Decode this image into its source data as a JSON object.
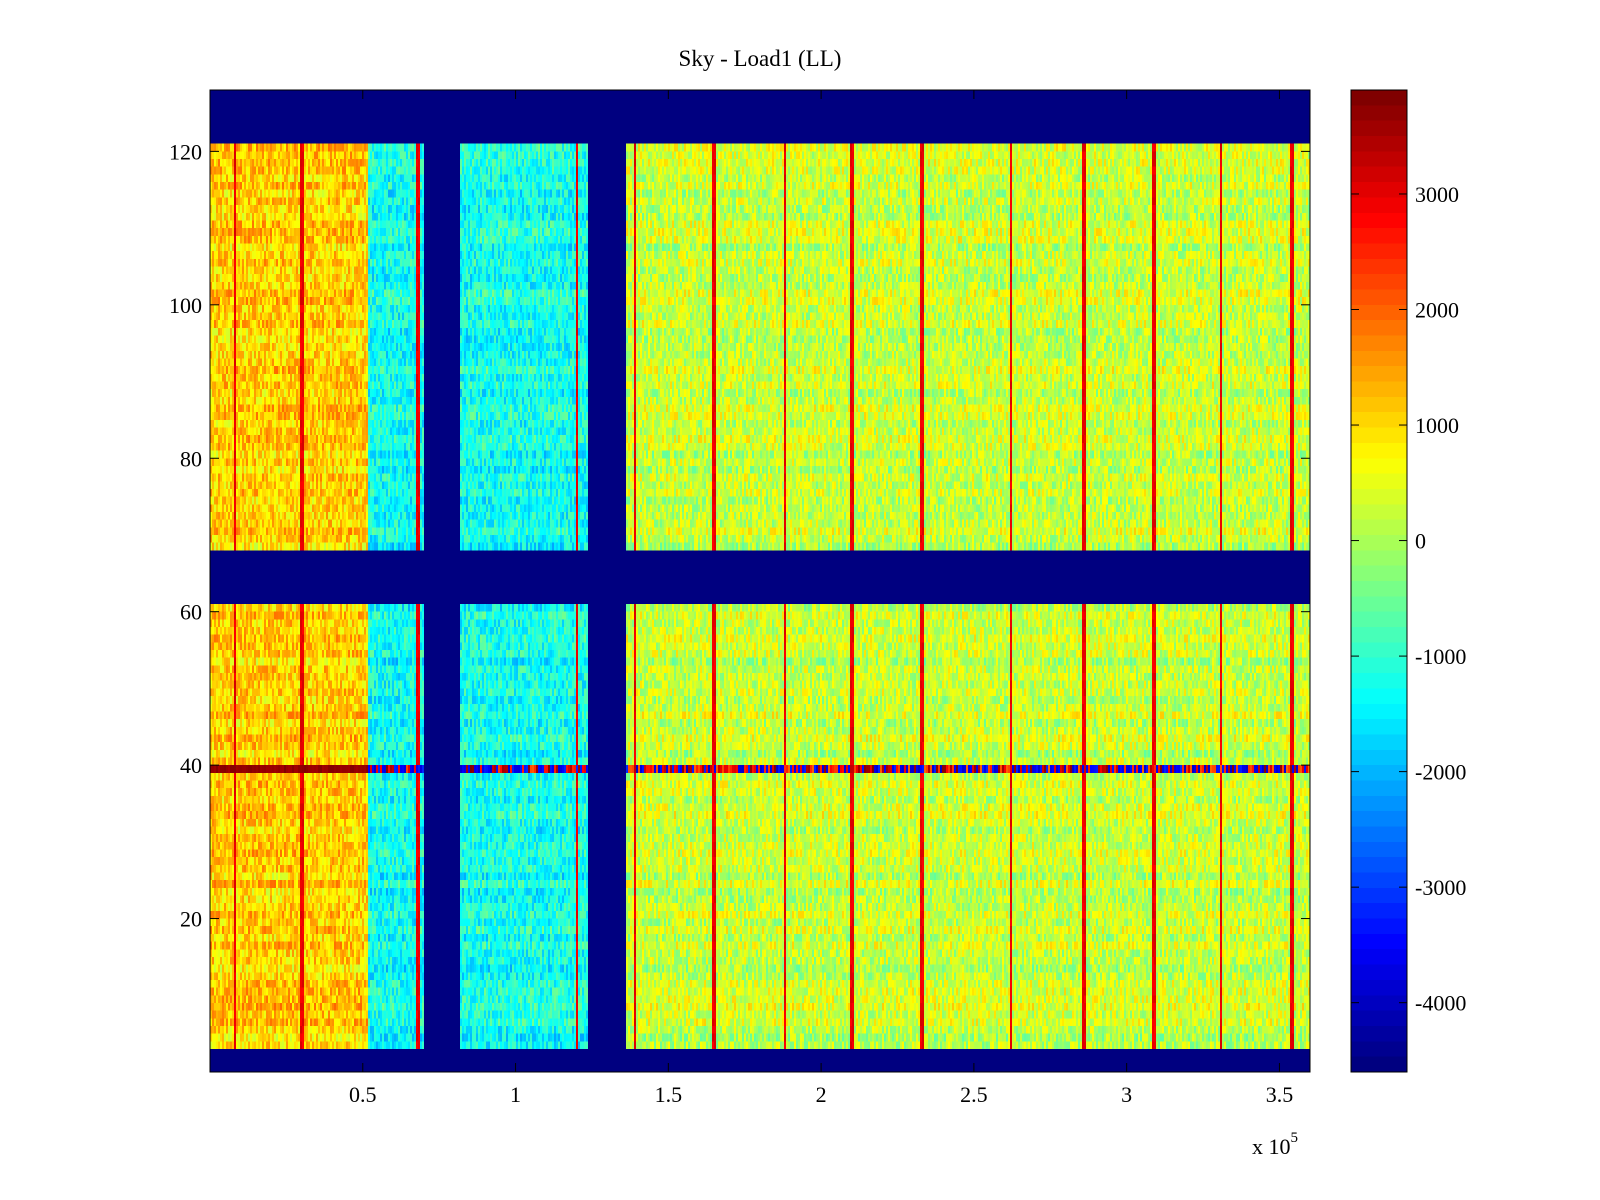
{
  "chart_data": {
    "type": "heatmap",
    "title": "Sky - Load1 (LL)",
    "xlabel": "",
    "ylabel": "",
    "x_exponent_label": "x 10",
    "x_exponent_power": "5",
    "xlim": [
      0,
      360000
    ],
    "ylim": [
      0,
      128
    ],
    "x_ticks": [
      {
        "value": 0.5,
        "label": "0.5"
      },
      {
        "value": 1,
        "label": "1"
      },
      {
        "value": 1.5,
        "label": "1.5"
      },
      {
        "value": 2,
        "label": "2"
      },
      {
        "value": 2.5,
        "label": "2.5"
      },
      {
        "value": 3,
        "label": "3"
      },
      {
        "value": 3.5,
        "label": "3.5"
      }
    ],
    "y_ticks": [
      {
        "value": 20,
        "label": "20"
      },
      {
        "value": 40,
        "label": "40"
      },
      {
        "value": 60,
        "label": "60"
      },
      {
        "value": 80,
        "label": "80"
      },
      {
        "value": 100,
        "label": "100"
      },
      {
        "value": 120,
        "label": "120"
      }
    ],
    "colorbar": {
      "min": -4600,
      "max": 3900,
      "colormap": "jet",
      "ticks": [
        {
          "value": 3000,
          "label": "3000"
        },
        {
          "value": 2000,
          "label": "2000"
        },
        {
          "value": 1000,
          "label": "1000"
        },
        {
          "value": 0,
          "label": "0"
        },
        {
          "value": -1000,
          "label": "-1000"
        },
        {
          "value": -2000,
          "label": "-2000"
        },
        {
          "value": -3000,
          "label": "-3000"
        },
        {
          "value": -4000,
          "label": "-4000"
        }
      ]
    },
    "masked_value": -4600,
    "masked_channel_ranges": [
      [
        0,
        3
      ],
      [
        61,
        68
      ],
      [
        121,
        128
      ]
    ],
    "masked_time_ranges": [
      [
        70000,
        82000
      ],
      [
        124000,
        136000
      ]
    ],
    "regions": [
      {
        "x_range": [
          0,
          52000
        ],
        "level": 1100
      },
      {
        "x_range": [
          52000,
          70000
        ],
        "level": -1300
      },
      {
        "x_range": [
          82000,
          124000
        ],
        "level": -1250
      },
      {
        "x_range": [
          136000,
          360000
        ],
        "level": 250
      }
    ],
    "spike_times": [
      8000,
      30000,
      68000,
      120000,
      139000,
      165000,
      188000,
      210000,
      233000,
      262000,
      286000,
      309000,
      331000,
      354000
    ],
    "spike_level": 2800,
    "hot_channel": {
      "channel": 39,
      "level_range": [
        -4600,
        3900
      ]
    },
    "colors": {
      "background": "#ffffff",
      "mask": "#00008f",
      "axis": "#000000"
    }
  }
}
